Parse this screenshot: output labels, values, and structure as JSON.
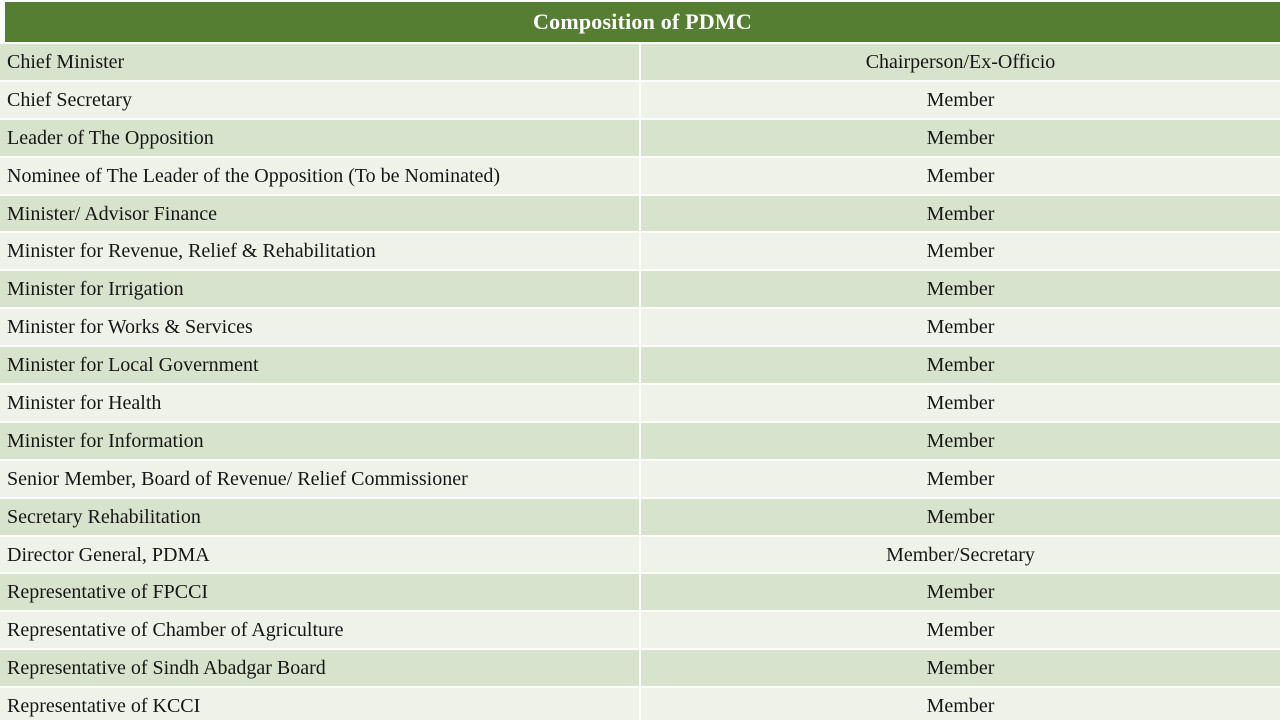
{
  "title": "Composition of PDMC",
  "colors": {
    "header_bg": "#557e33",
    "row_dark": "#d7e3cc",
    "row_light": "#eef2e8",
    "title_text": "#ffffff",
    "row_text": "#161616"
  },
  "table": {
    "rows": [
      {
        "role": "Chief Minister",
        "position": "Chairperson/Ex-Officio"
      },
      {
        "role": "Chief Secretary",
        "position": "Member"
      },
      {
        "role": "Leader of The Opposition",
        "position": "Member"
      },
      {
        "role": "Nominee of The Leader of the Opposition (To be Nominated)",
        "position": "Member"
      },
      {
        "role": "Minister/ Advisor Finance",
        "position": "Member"
      },
      {
        "role": "Minister for Revenue, Relief & Rehabilitation",
        "position": "Member"
      },
      {
        "role": "Minister for Irrigation",
        "position": "Member"
      },
      {
        "role": "Minister for Works & Services",
        "position": "Member"
      },
      {
        "role": "Minister for Local Government",
        "position": "Member"
      },
      {
        "role": "Minister for Health",
        "position": "Member"
      },
      {
        "role": "Minister for Information",
        "position": "Member"
      },
      {
        "role": "Senior Member, Board of Revenue/ Relief Commissioner",
        "position": "Member"
      },
      {
        "role": "Secretary Rehabilitation",
        "position": "Member"
      },
      {
        "role": "Director General, PDMA",
        "position": "Member/Secretary"
      },
      {
        "role": "Representative of FPCCI",
        "position": "Member"
      },
      {
        "role": "Representative of Chamber of Agriculture",
        "position": "Member"
      },
      {
        "role": "Representative of Sindh Abadgar Board",
        "position": "Member"
      },
      {
        "role": "Representative of KCCI",
        "position": "Member"
      }
    ]
  }
}
